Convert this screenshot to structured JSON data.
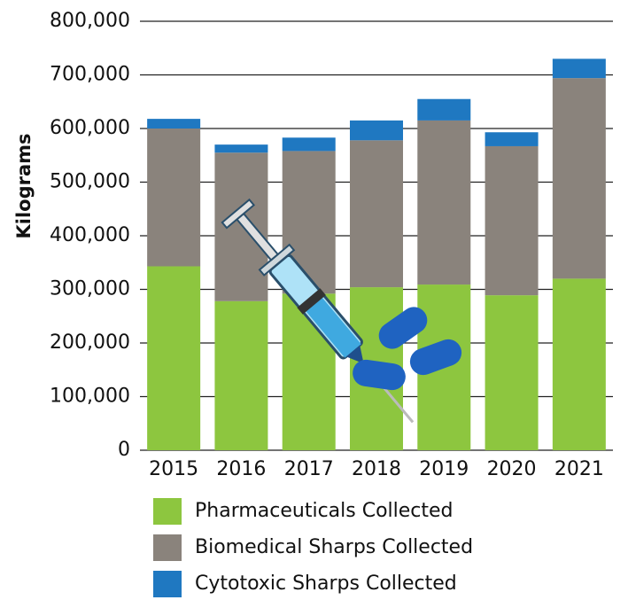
{
  "chart_data": {
    "type": "stacked_bar",
    "y_label": "Kilograms",
    "categories": [
      "2015",
      "2016",
      "2017",
      "2018",
      "2019",
      "2020",
      "2021"
    ],
    "series": [
      {
        "name": "Pharmaceuticals Collected",
        "color": "#8dc63f",
        "values": [
          343000,
          278000,
          292000,
          304000,
          309000,
          289000,
          320000
        ]
      },
      {
        "name": "Biomedical Sharps Collected",
        "color": "#8a837c",
        "values": [
          257000,
          277000,
          266000,
          274000,
          306000,
          278000,
          374000
        ]
      },
      {
        "name": "Cytotoxic Sharps Collected",
        "color": "#1f78c1",
        "values": [
          18000,
          15000,
          25000,
          37000,
          40000,
          26000,
          36000
        ]
      }
    ],
    "ylim": [
      0,
      800000
    ],
    "yticks": [
      0,
      {
        "value": 100000,
        "label": "100,000"
      },
      {
        "value": 200000,
        "label": "200,000"
      },
      {
        "value": 300000,
        "label": "300,000"
      },
      {
        "value": 400000,
        "label": "400,000"
      },
      {
        "value": 500000,
        "label": "500,000"
      },
      {
        "value": 600000,
        "label": "600,000"
      },
      {
        "value": 700000,
        "label": "700,000"
      },
      {
        "value": 800000,
        "label": "800,000"
      }
    ],
    "grid": true
  }
}
